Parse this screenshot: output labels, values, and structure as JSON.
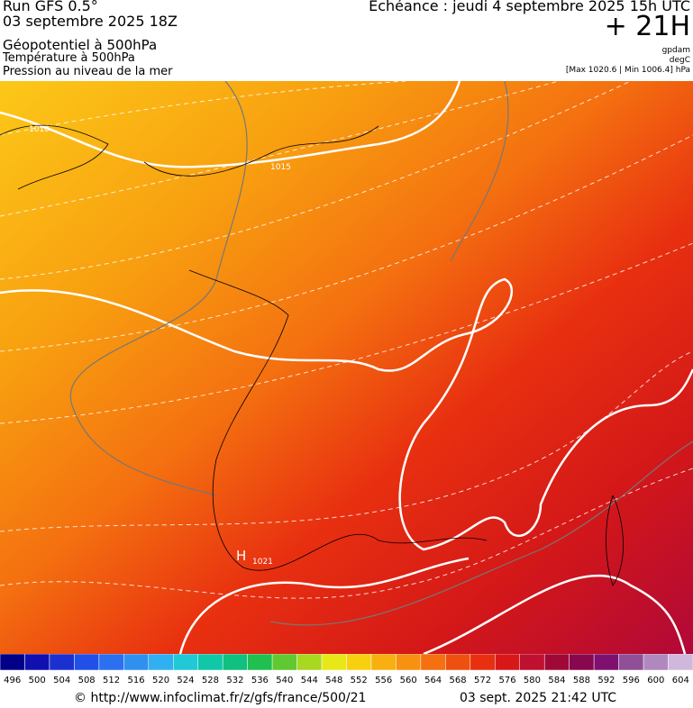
{
  "header": {
    "run": "Run GFS 0.5°",
    "run_date": "03 septembre 2025 18Z",
    "field1": "Géopotentiel à 500hPa",
    "field2": "Température à 500hPa",
    "field3": "Pression au niveau de la mer",
    "echeance": "Echéance : jeudi 4 septembre 2025 15h UTC",
    "lead": "+ 21H",
    "unit1": "gpdam",
    "unit2": "degC",
    "range": "[Max 1020.6 | Min 1006.4] hPa"
  },
  "map": {
    "labels": [
      "1010",
      "1015",
      "H",
      "1021"
    ]
  },
  "legend": {
    "labels": [
      496,
      500,
      504,
      508,
      512,
      516,
      520,
      524,
      528,
      532,
      536,
      540,
      544,
      548,
      552,
      556,
      560,
      564,
      568,
      572,
      576,
      580,
      584,
      588,
      592,
      596,
      600,
      604
    ],
    "colors": [
      "#000088",
      "#1010b0",
      "#1a30d0",
      "#2050e8",
      "#2a70f0",
      "#3090f0",
      "#30b0f0",
      "#20c8d8",
      "#10c8a8",
      "#10c080",
      "#20c050",
      "#60c830",
      "#a8d820",
      "#e8e818",
      "#f8d010",
      "#f8b010",
      "#f89010",
      "#f47010",
      "#ee5010",
      "#e83010",
      "#d81818",
      "#c01030",
      "#a00838",
      "#880850",
      "#801070",
      "#905098",
      "#b088c0",
      "#d0b8dc"
    ]
  },
  "footer": {
    "url": "© http://www.infoclimat.fr/z/gfs/france/500/21",
    "date": "03 sept. 2025 21:42 UTC"
  }
}
